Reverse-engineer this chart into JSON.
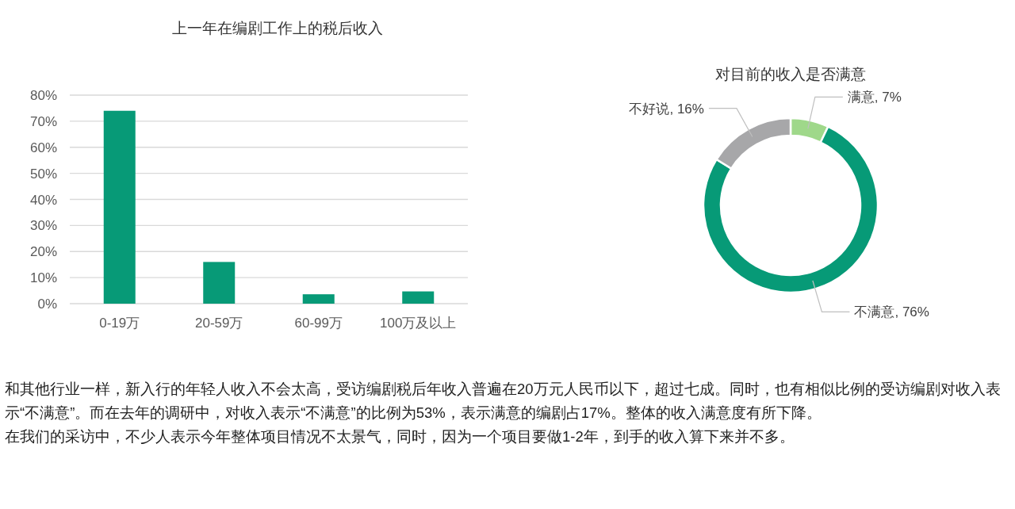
{
  "chart_data": [
    {
      "type": "bar",
      "title": "上一年在编剧工作上的税后收入",
      "categories": [
        "0-19万",
        "20-59万",
        "60-99万",
        "100万及以上"
      ],
      "values": [
        74,
        16,
        3.6,
        4.7
      ],
      "color": "#079a77",
      "ylim": [
        0,
        80
      ],
      "yticks": [
        {
          "value": 0,
          "label": "0%"
        },
        {
          "value": 10,
          "label": "10%"
        },
        {
          "value": 20,
          "label": "20%"
        },
        {
          "value": 30,
          "label": "30%"
        },
        {
          "value": 40,
          "label": "40%"
        },
        {
          "value": 50,
          "label": "50%"
        },
        {
          "value": 60,
          "label": "60%"
        },
        {
          "value": 70,
          "label": "70%"
        },
        {
          "value": 80,
          "label": "80%"
        }
      ],
      "grid": "y"
    },
    {
      "type": "donut",
      "title": "对目前的收入是否满意",
      "categories": [
        "满意",
        "不满意",
        "不好说"
      ],
      "values": [
        7,
        76,
        16
      ],
      "colors": [
        "#9fd88a",
        "#079a77",
        "#a7a7a9"
      ],
      "value_labels": [
        "7%",
        "76%",
        "16%"
      ]
    },
    {
      "type": "other",
      "annotations": [
        "和其他行业一样，新入行的年轻人收入不会太高，受访编剧税后年收入普遍在20万元人民币以下，超过七成。同时，也有相似比例的受访编剧对收入表示“不满意”。而在去年的调研中，对收入表示“不满意”的比例为53%，表示满意的编剧占17%。整体的收入满意度有所下降。",
        "在我们的采访中，不少人表示今年整体项目情况不太景气，同时，因为一个项目要做1-2年，到手的收入算下来并不多。"
      ]
    }
  ]
}
